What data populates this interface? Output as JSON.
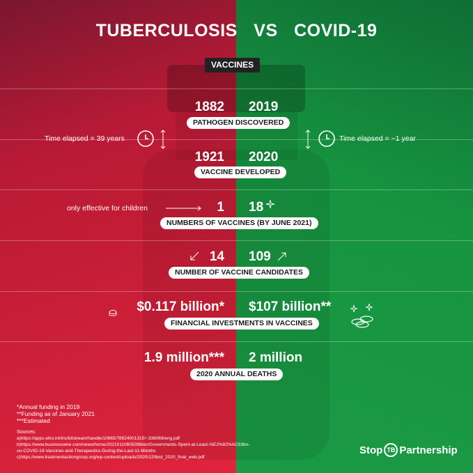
{
  "header": {
    "title_left": "TUBERCULOSIS",
    "title_vs": "VS",
    "title_right": "COVID-19"
  },
  "section_badge": "VACCINES",
  "rows": {
    "pathogen": {
      "left": "1882",
      "right": "2019",
      "label": "PATHOGEN DISCOVERED"
    },
    "vaccine": {
      "left": "1921",
      "right": "2020",
      "label": "VACCINE DEVELOPED"
    },
    "count": {
      "left": "1",
      "right": "18",
      "label": "NUMBERS OF VACCINES  (BY JUNE 2021)",
      "note": "only effective for children"
    },
    "candidates": {
      "left": "14",
      "right": "109",
      "label": "NUMBER OF VACCINE CANDIDATES"
    },
    "investment": {
      "left": "$0.117 billion*",
      "right": "$107 billion**",
      "label": "FINANCIAL INVESTMENTS IN VACCINES"
    },
    "deaths": {
      "left": "1.9 million***",
      "right": "2 million",
      "label": "2020 ANNUAL DEATHS"
    }
  },
  "time_elapsed": {
    "left": "Time elapsed = 39 years",
    "right": "Time elapsed = ~1 year"
  },
  "footnotes": [
    "*Annual funding in 2019",
    "**Funding as of January 2021",
    "***Estimated"
  ],
  "sources": {
    "heading": "Sources:",
    "lines": [
      "a)https://apps.who.int/iris/bitstream/handle/10665/78924001315!~336069/eng.pdf",
      "b)https://www.businesswire.com/news/home/20210110605098/en/Governments-Spent-at-Least-%E2%82%AC93bn-",
      "on-COVID-19-Vaccines-and-Therapeutics-During-the-Last-11-Months",
      "c)https://www.treatmentactiongroup.org/wp-content/uploads/2020/12/tbrd_2020_final_web.pdf"
    ]
  },
  "logo": {
    "left": "Stop",
    "mid": "TB",
    "right": "Partnership"
  },
  "colors": {
    "tb_red": "#e0243c",
    "covid_green": "#1b9a45",
    "badge_dark": "#222222"
  }
}
